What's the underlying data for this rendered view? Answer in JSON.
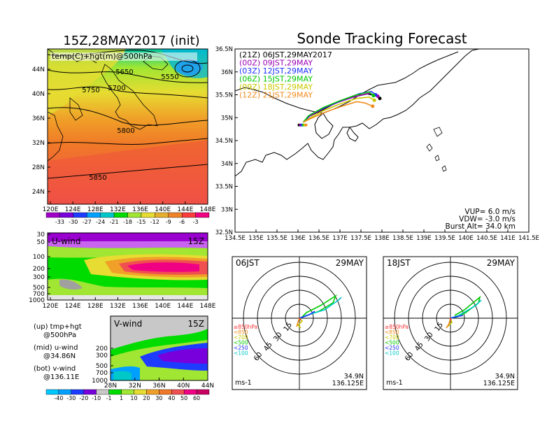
{
  "chart_data": {
    "type": "figure-panel",
    "title_left": "15Z,28MAY2017 (init)",
    "title_right": "Sonde Tracking Forecast",
    "map500": {
      "label": "temp(C)+hgt(m)@500hPa",
      "xticks": [
        "120E",
        "124E",
        "128E",
        "132E",
        "136E",
        "140E",
        "144E",
        "148E"
      ],
      "yticks": [
        "24N",
        "28N",
        "32N",
        "36N",
        "40N",
        "44N"
      ],
      "contour_labels": [
        "5650",
        "5550",
        "5750",
        "5700",
        "5800",
        "5850"
      ],
      "colorbar_labels": [
        "-33",
        "-30",
        "-27",
        "-24",
        "-21",
        "-18",
        "-15",
        "-12",
        "-9",
        "-6",
        "-3"
      ],
      "colorbar_colors": [
        "#a000c8",
        "#7800dc",
        "#1e3cff",
        "#00a0ff",
        "#00c8c8",
        "#00dc00",
        "#a0e632",
        "#e6dc32",
        "#e6af2d",
        "#f08228",
        "#fa3c3c",
        "#f00082"
      ]
    },
    "uwind": {
      "label": "U-wind",
      "time": "15Z",
      "yticks": [
        "30",
        "50",
        "100",
        "200",
        "300",
        "500",
        "700",
        "1000"
      ],
      "xticks": [
        "120E",
        "124E",
        "128E",
        "132E",
        "136E",
        "140E",
        "144E",
        "148E"
      ]
    },
    "vwind": {
      "label": "V-wind",
      "time": "15Z",
      "yticks": [
        "200",
        "300",
        "500",
        "700",
        "1000"
      ],
      "xticks": [
        "28N",
        "32N",
        "36N",
        "40N",
        "44N"
      ],
      "colorbar_labels": [
        "-40",
        "-30",
        "-20",
        "-10",
        "-1",
        "1",
        "10",
        "20",
        "30",
        "40",
        "50",
        "60"
      ]
    },
    "legend_notes": [
      "(up) tmp+hgt",
      "@500hPa",
      "(mid) u-wind",
      "@34.86N",
      "(bot) v-wind",
      "@136.11E"
    ],
    "track_map": {
      "xticks": [
        "134.5E",
        "135E",
        "135.5E",
        "136E",
        "136.5E",
        "137E",
        "137.5E",
        "138E",
        "138.5E",
        "139E",
        "139.5E",
        "140E",
        "140.5E",
        "141E",
        "141.5E"
      ],
      "yticks": [
        "32.5N",
        "33N",
        "33.5N",
        "34N",
        "34.5N",
        "35N",
        "35.5N",
        "36N",
        "36.5N"
      ],
      "xlim": [
        134.5,
        141.5
      ],
      "ylim": [
        32.5,
        36.5
      ],
      "launches": [
        {
          "label": "(21Z)  06JST,29MAY2017",
          "color": "#000000",
          "path": [
            [
              136.125,
              34.9
            ],
            [
              136.25,
              35.02
            ],
            [
              136.6,
              35.18
            ],
            [
              136.9,
              35.32
            ],
            [
              137.3,
              35.45
            ],
            [
              137.65,
              35.52
            ],
            [
              137.85,
              35.48
            ],
            [
              137.95,
              35.42
            ]
          ]
        },
        {
          "label": "(00Z)  09JST,29MAY",
          "color": "#9a00b4",
          "path": [
            [
              136.125,
              34.9
            ],
            [
              136.3,
              35.05
            ],
            [
              136.65,
              35.22
            ],
            [
              137.0,
              35.35
            ],
            [
              137.4,
              35.47
            ],
            [
              137.7,
              35.53
            ],
            [
              137.9,
              35.47
            ]
          ]
        },
        {
          "label": "(03Z)  12JST,29MAY",
          "color": "#1e32ff",
          "path": [
            [
              136.125,
              34.9
            ],
            [
              136.3,
              35.07
            ],
            [
              136.7,
              35.25
            ],
            [
              137.1,
              35.4
            ],
            [
              137.45,
              35.52
            ],
            [
              137.75,
              35.57
            ],
            [
              137.85,
              35.5
            ]
          ]
        },
        {
          "label": "(06Z)  15JST,29MAY",
          "color": "#00c800",
          "path": [
            [
              136.125,
              34.9
            ],
            [
              136.25,
              35.04
            ],
            [
              136.6,
              35.22
            ],
            [
              137.0,
              35.37
            ],
            [
              137.4,
              35.5
            ],
            [
              137.7,
              35.56
            ],
            [
              137.8,
              35.48
            ]
          ]
        },
        {
          "label": "(09Z)  18JST,29MAY",
          "color": "#c8c800",
          "path": [
            [
              136.125,
              34.9
            ],
            [
              136.3,
              35.0
            ],
            [
              136.6,
              35.15
            ],
            [
              137.0,
              35.3
            ],
            [
              137.4,
              35.42
            ],
            [
              137.7,
              35.45
            ],
            [
              137.82,
              35.38
            ]
          ]
        },
        {
          "label": "(12Z)  21JST,29MAY",
          "color": "#f08c1e",
          "path": [
            [
              136.125,
              34.9
            ],
            [
              136.3,
              34.98
            ],
            [
              136.65,
              35.12
            ],
            [
              137.05,
              35.25
            ],
            [
              137.4,
              35.35
            ],
            [
              137.6,
              35.32
            ],
            [
              137.78,
              35.25
            ]
          ]
        }
      ],
      "info": [
        "VUP=  6.0 m/s",
        "VDW= -3.0 m/s",
        "Burst Alt= 34.0 km"
      ]
    },
    "hodographs": [
      {
        "time": "06JST",
        "date": "29MAY",
        "lat": "34.9N",
        "lon": "136.125E",
        "ms_label": "ms-1",
        "ring_labels": [
          "15",
          "30",
          "45",
          "60"
        ]
      },
      {
        "time": "18JST",
        "date": "29MAY",
        "lat": "34.9N",
        "lon": "136.125E",
        "ms_label": "ms-1",
        "ring_labels": [
          "15",
          "30",
          "45",
          "60"
        ]
      }
    ],
    "hodo_levels": [
      {
        "label": "≥850hPa",
        "color": "#fa3232"
      },
      {
        "label": "<850",
        "color": "#f08c1e"
      },
      {
        "label": "<700",
        "color": "#c8c800"
      },
      {
        "label": "<500",
        "color": "#00c800"
      },
      {
        "label": "<250",
        "color": "#1e32ff"
      },
      {
        "label": "<100",
        "color": "#00c8c8"
      }
    ]
  }
}
